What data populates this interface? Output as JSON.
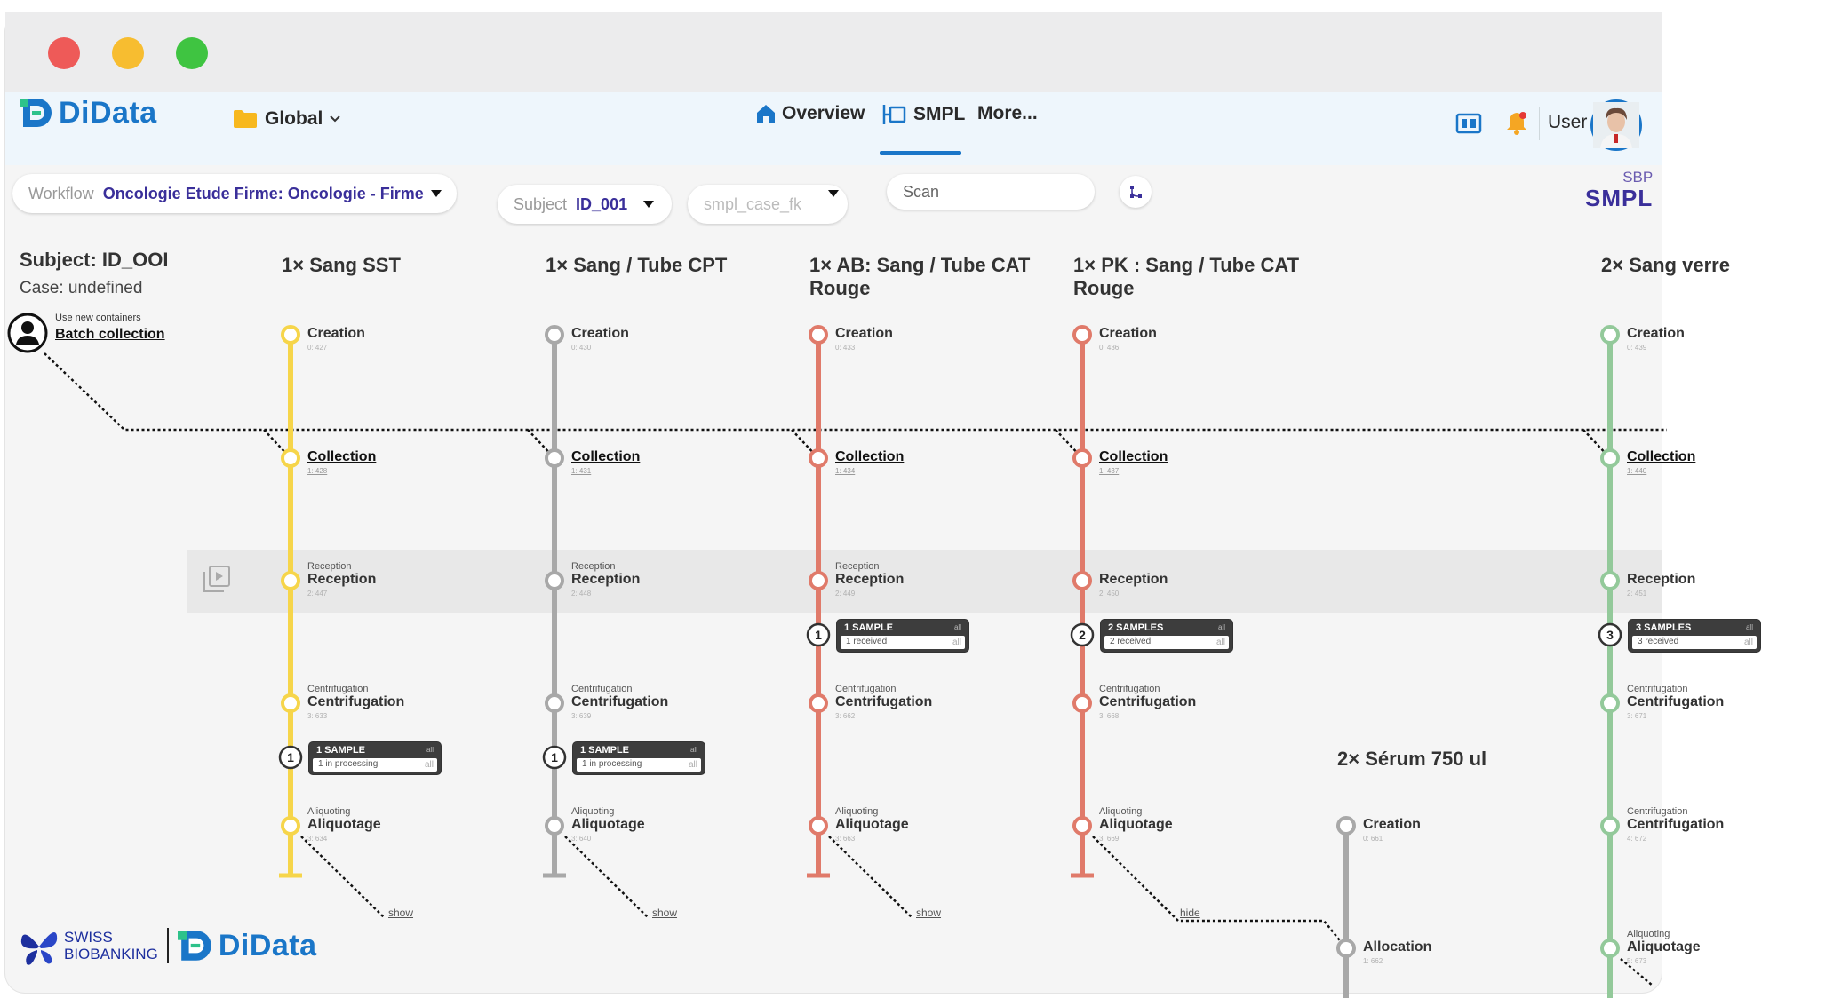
{
  "window": {
    "traffic_lights": [
      "close",
      "minimize",
      "maximize"
    ]
  },
  "navbar": {
    "logo_text": "DiData",
    "workspace": "Global",
    "links": [
      {
        "label": "Overview",
        "icon": "home-icon"
      },
      {
        "label": "SMPL",
        "icon": "smpl-icon",
        "active": true
      },
      {
        "label": "More...",
        "icon": ""
      }
    ],
    "user_label": "User"
  },
  "filters": {
    "workflow_label": "Workflow",
    "workflow_value": "Oncologie Etude Firme: Oncologie - Firme",
    "subject_label": "Subject",
    "subject_value": "ID_001",
    "case_placeholder": "smpl_case_fk",
    "scan_placeholder": "Scan"
  },
  "brand": {
    "sbp_top": "SBP",
    "sbp_bottom": "SMPL"
  },
  "subject": {
    "title": "Subject: ID_OOI",
    "case": "Case: undefined"
  },
  "batch": {
    "small": "Use new containers",
    "link": "Batch collection"
  },
  "columns": [
    {
      "title": "1× Sang SST",
      "color": "#f6d54a",
      "stages": [
        {
          "small": "",
          "name": "Creation",
          "id": "0: 427"
        },
        {
          "small": "",
          "name": "Collection",
          "id": "1: 428",
          "link": true
        },
        {
          "small": "Reception",
          "name": "Reception",
          "id": "2: 447"
        },
        {
          "small": "Centrifugation",
          "name": "Centrifugation",
          "id": "3: 633"
        },
        {
          "small": "Aliquoting",
          "name": "Aliquotage",
          "id": "3: 634"
        }
      ],
      "badge": {
        "count": "1",
        "top": "1 SAMPLE",
        "bottom": "1 in processing",
        "all": "all"
      },
      "toggle": "show"
    },
    {
      "title": "1× Sang / Tube CPT",
      "color": "#a8a8a8",
      "stages": [
        {
          "small": "",
          "name": "Creation",
          "id": "0: 430"
        },
        {
          "small": "",
          "name": "Collection",
          "id": "1: 431",
          "link": true
        },
        {
          "small": "Reception",
          "name": "Reception",
          "id": "2: 448"
        },
        {
          "small": "Centrifugation",
          "name": "Centrifugation",
          "id": "3: 639"
        },
        {
          "small": "Aliquoting",
          "name": "Aliquotage",
          "id": "3: 640"
        }
      ],
      "badge": {
        "count": "1",
        "top": "1 SAMPLE",
        "bottom": "1 in processing",
        "all": "all"
      },
      "toggle": "show"
    },
    {
      "title": "1× AB: Sang / Tube CAT Rouge",
      "color": "#e07a6a",
      "stages": [
        {
          "small": "",
          "name": "Creation",
          "id": "0: 433"
        },
        {
          "small": "",
          "name": "Collection",
          "id": "1: 434",
          "link": true
        },
        {
          "small": "Reception",
          "name": "Reception",
          "id": "2: 449"
        },
        {
          "small": "Centrifugation",
          "name": "Centrifugation",
          "id": "3: 662"
        },
        {
          "small": "Aliquoting",
          "name": "Aliquotage",
          "id": "3: 663"
        }
      ],
      "badge": {
        "count": "1",
        "top": "1 SAMPLE",
        "bottom": "1 received",
        "all": "all"
      },
      "toggle": "show"
    },
    {
      "title": "1× PK : Sang / Tube CAT Rouge",
      "color": "#e07a6a",
      "stages": [
        {
          "small": "",
          "name": "Creation",
          "id": "0: 436"
        },
        {
          "small": "",
          "name": "Collection",
          "id": "1: 437",
          "link": true
        },
        {
          "small": "",
          "name": "Reception",
          "id": "2: 450"
        },
        {
          "small": "Centrifugation",
          "name": "Centrifugation",
          "id": "3: 668"
        },
        {
          "small": "Aliquoting",
          "name": "Aliquotage",
          "id": "3: 669"
        }
      ],
      "badge": {
        "count": "2",
        "top": "2 SAMPLES",
        "bottom": "2 received",
        "all": "all"
      },
      "toggle": "hide"
    },
    {
      "title": "2× Sang verre",
      "color": "#93c99a",
      "stages": [
        {
          "small": "",
          "name": "Creation",
          "id": "0: 439"
        },
        {
          "small": "",
          "name": "Collection",
          "id": "1: 440",
          "link": true
        },
        {
          "small": "",
          "name": "Reception",
          "id": "2: 451"
        },
        {
          "small": "Centrifugation",
          "name": "Centrifugation",
          "id": "3: 671"
        },
        {
          "small": "Centrifugation",
          "name": "Centrifugation",
          "id": "4: 672"
        },
        {
          "small": "Aliquoting",
          "name": "Aliquotage",
          "id": "5: 673"
        }
      ],
      "badge": {
        "count": "3",
        "top": "3 SAMPLES",
        "bottom": "3 received",
        "all": "all"
      }
    }
  ],
  "sub_column": {
    "title": "2× Sérum 750 ul",
    "color": "#a8a8a8",
    "stages": [
      {
        "name": "Creation",
        "id": "0: 661"
      },
      {
        "name": "Allocation",
        "id": "1: 662"
      }
    ]
  },
  "footer": {
    "swiss_line1": "SWISS",
    "swiss_line2": "BIOBANKING",
    "didata": "DiData"
  }
}
